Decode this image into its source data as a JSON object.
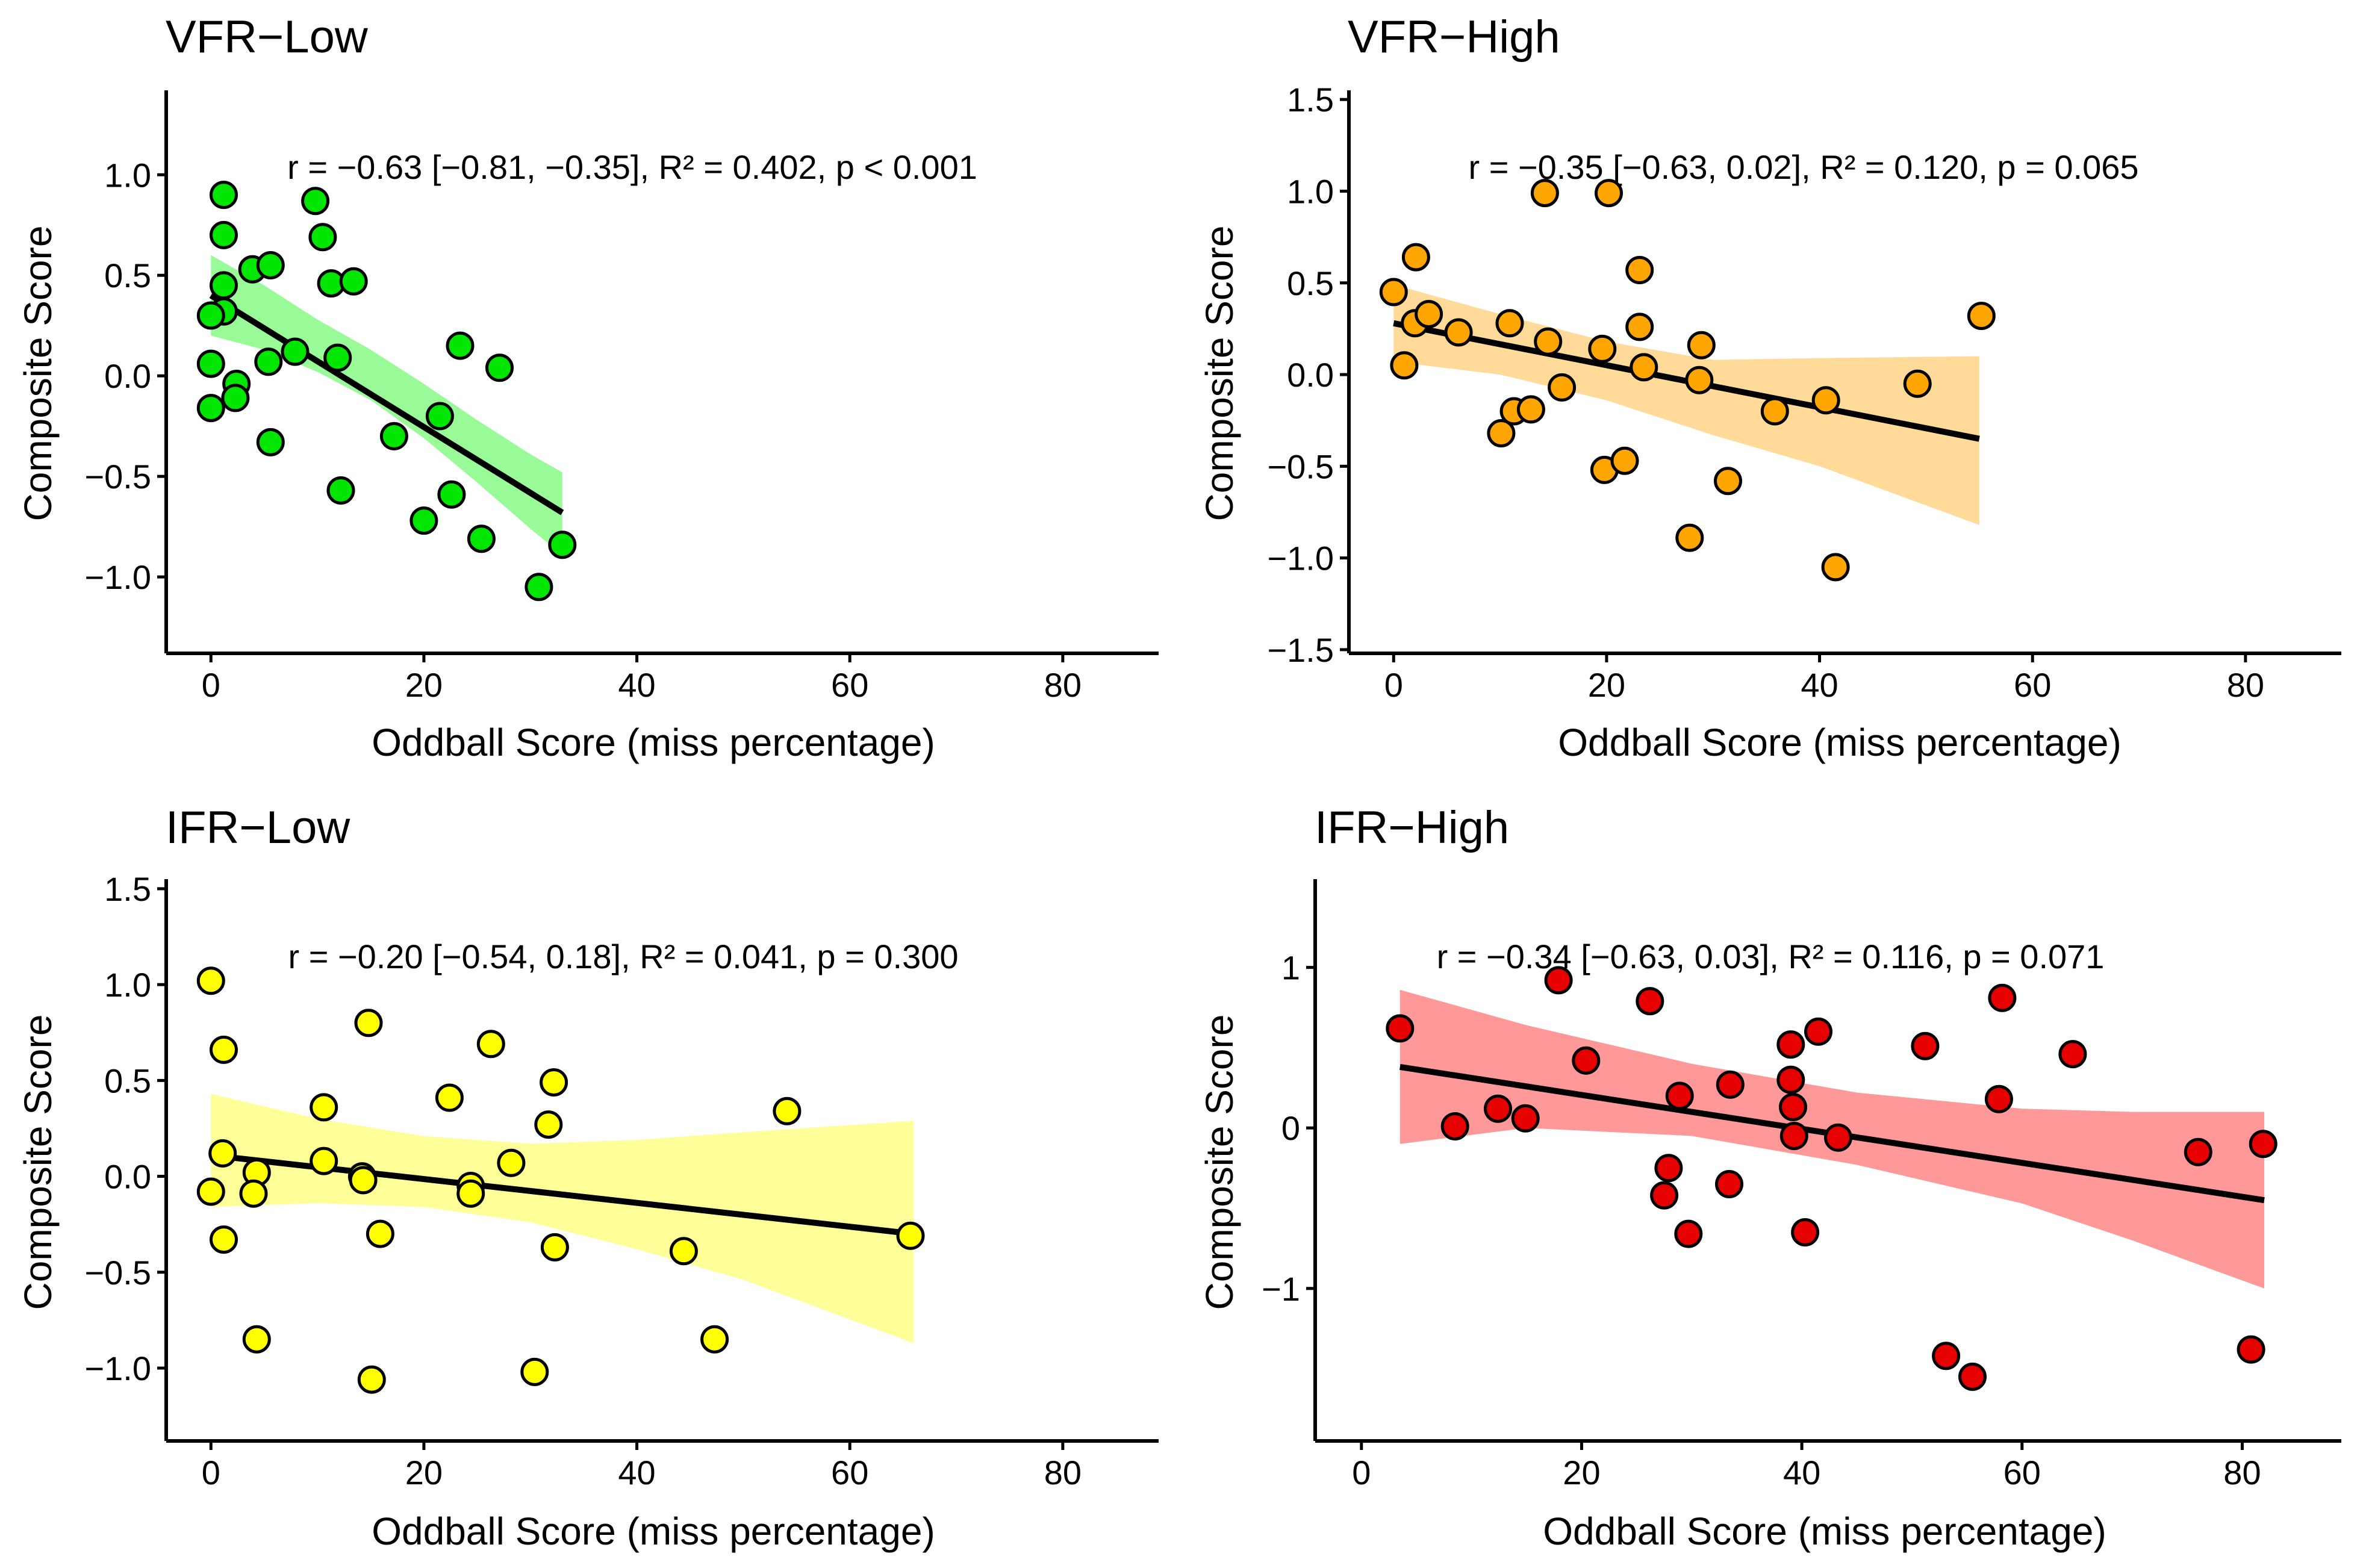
{
  "chart_data": [
    {
      "type": "scatter",
      "title": "VFR−Low",
      "xlabel": "Oddball Score (miss percentage)",
      "ylabel": "Composite Score",
      "annotation": "r = −0.63 [−0.81, −0.35], R² = 0.402, p < 0.001",
      "color": "#00E600",
      "band_color": "#98FB98",
      "xlim": [
        -4.2,
        89
      ],
      "ylim": [
        -1.38,
        1.42
      ],
      "xticks": [
        0,
        20,
        40,
        60,
        80
      ],
      "xtick_labels": [
        "0",
        "20",
        "40",
        "60",
        "80"
      ],
      "yticks": [
        -1.0,
        -0.5,
        0.0,
        0.5,
        1.0
      ],
      "ytick_labels": [
        "−1.0",
        "−0.5",
        "0.0",
        "0.5",
        "1.0"
      ],
      "points": [
        [
          1.2,
          0.9
        ],
        [
          1.2,
          0.7
        ],
        [
          1.2,
          0.45
        ],
        [
          1.2,
          0.32
        ],
        [
          0,
          0.3
        ],
        [
          0,
          0.06
        ],
        [
          0,
          -0.16
        ],
        [
          2.4,
          -0.04
        ],
        [
          2.3,
          -0.11
        ],
        [
          3.9,
          0.53
        ],
        [
          5.6,
          0.55
        ],
        [
          5.4,
          0.07
        ],
        [
          5.6,
          -0.33
        ],
        [
          7.9,
          0.12
        ],
        [
          9.8,
          0.87
        ],
        [
          10.5,
          0.69
        ],
        [
          11.3,
          0.46
        ],
        [
          13.4,
          0.47
        ],
        [
          11.9,
          0.09
        ],
        [
          12.2,
          -0.57
        ],
        [
          17.2,
          -0.3
        ],
        [
          20.0,
          -0.72
        ],
        [
          21.5,
          -0.2
        ],
        [
          22.6,
          -0.59
        ],
        [
          23.4,
          0.15
        ],
        [
          25.4,
          -0.81
        ],
        [
          27.1,
          0.04
        ],
        [
          30.8,
          -1.05
        ],
        [
          33.0,
          -0.84
        ]
      ],
      "fit": {
        "x": [
          0,
          33
        ],
        "y": [
          0.4,
          -0.68
        ]
      },
      "band": {
        "x": [
          0,
          5,
          10,
          15,
          20,
          25,
          30,
          33
        ],
        "lower": [
          0.2,
          0.13,
          0.02,
          -0.12,
          -0.31,
          -0.53,
          -0.76,
          -0.89
        ],
        "upper": [
          0.6,
          0.45,
          0.28,
          0.13,
          -0.04,
          -0.22,
          -0.39,
          -0.48
        ]
      }
    },
    {
      "type": "scatter",
      "title": "VFR−High",
      "xlabel": "Oddball Score (miss percentage)",
      "ylabel": "Composite Score",
      "annotation": "r = −0.35 [−0.63, 0.02], R² = 0.120, p = 0.065",
      "color": "#FFA500",
      "band_color": "#FFDA99",
      "xlim": [
        -4.2,
        89
      ],
      "ylim": [
        -1.52,
        1.55
      ],
      "xticks": [
        0,
        20,
        40,
        60,
        80
      ],
      "xtick_labels": [
        "0",
        "20",
        "40",
        "60",
        "80"
      ],
      "yticks": [
        -1.5,
        -1.0,
        -0.5,
        0.0,
        0.5,
        1.0,
        1.5
      ],
      "ytick_labels": [
        "−1.5",
        "−1.0",
        "−0.5",
        "0.0",
        "0.5",
        "1.0",
        "1.5"
      ],
      "points": [
        [
          0,
          0.45
        ],
        [
          1.0,
          0.05
        ],
        [
          2.0,
          0.28
        ],
        [
          2.1,
          0.64
        ],
        [
          3.3,
          0.33
        ],
        [
          6.1,
          0.23
        ],
        [
          10.1,
          -0.32
        ],
        [
          10.9,
          0.28
        ],
        [
          11.3,
          -0.2
        ],
        [
          12.9,
          -0.19
        ],
        [
          14.2,
          0.99
        ],
        [
          14.5,
          0.18
        ],
        [
          15.8,
          -0.07
        ],
        [
          19.6,
          0.14
        ],
        [
          19.8,
          -0.52
        ],
        [
          20.2,
          0.99
        ],
        [
          21.7,
          -0.47
        ],
        [
          23.1,
          0.57
        ],
        [
          23.1,
          0.26
        ],
        [
          23.5,
          0.04
        ],
        [
          27.8,
          -0.89
        ],
        [
          28.7,
          -0.03
        ],
        [
          28.9,
          0.16
        ],
        [
          31.4,
          -0.58
        ],
        [
          35.8,
          -0.2
        ],
        [
          40.6,
          -0.14
        ],
        [
          41.5,
          -1.05
        ],
        [
          49.2,
          -0.05
        ],
        [
          55.2,
          0.32
        ]
      ],
      "fit": {
        "x": [
          0,
          55
        ],
        "y": [
          0.28,
          -0.35
        ]
      },
      "band": {
        "x": [
          0,
          10,
          20,
          30,
          40,
          55
        ],
        "lower": [
          0.07,
          0.0,
          -0.14,
          -0.33,
          -0.5,
          -0.82
        ],
        "upper": [
          0.49,
          0.33,
          0.18,
          0.08,
          0.09,
          0.1
        ]
      }
    },
    {
      "type": "scatter",
      "title": "IFR−Low",
      "xlabel": "Oddball Score (miss percentage)",
      "ylabel": "Composite Score",
      "annotation": "r = −0.20 [−0.54, 0.18], R² = 0.041, p = 0.300",
      "color": "#FFFF00",
      "band_color": "#FFFF99",
      "xlim": [
        -4.2,
        89
      ],
      "ylim": [
        -1.38,
        1.55
      ],
      "xticks": [
        0,
        20,
        40,
        60,
        80
      ],
      "xtick_labels": [
        "0",
        "20",
        "40",
        "60",
        "80"
      ],
      "yticks": [
        -1.0,
        -0.5,
        0.0,
        0.5,
        1.0,
        1.5
      ],
      "ytick_labels": [
        "−1.0",
        "−0.5",
        "0.0",
        "0.5",
        "1.0",
        "1.5"
      ],
      "points": [
        [
          0,
          1.02
        ],
        [
          0,
          -0.08
        ],
        [
          1.2,
          0.66
        ],
        [
          1.1,
          0.12
        ],
        [
          1.2,
          -0.33
        ],
        [
          4.3,
          0.02
        ],
        [
          4.0,
          -0.09
        ],
        [
          4.3,
          -0.85
        ],
        [
          10.6,
          0.36
        ],
        [
          10.6,
          0.08
        ],
        [
          14.2,
          0.0
        ],
        [
          14.3,
          -0.02
        ],
        [
          14.8,
          0.8
        ],
        [
          15.1,
          -1.06
        ],
        [
          15.9,
          -0.3
        ],
        [
          22.4,
          0.41
        ],
        [
          24.4,
          -0.05
        ],
        [
          24.4,
          -0.09
        ],
        [
          26.3,
          0.69
        ],
        [
          28.2,
          0.07
        ],
        [
          30.4,
          -1.02
        ],
        [
          31.7,
          0.27
        ],
        [
          32.2,
          0.49
        ],
        [
          32.3,
          -0.37
        ],
        [
          44.4,
          -0.39
        ],
        [
          47.3,
          -0.85
        ],
        [
          54.1,
          0.34
        ],
        [
          65.7,
          -0.31
        ]
      ],
      "fit": {
        "x": [
          0,
          66
        ],
        "y": [
          0.11,
          -0.3
        ]
      },
      "band": {
        "x": [
          0,
          10,
          20,
          30,
          40,
          50,
          66
        ],
        "lower": [
          -0.16,
          -0.14,
          -0.16,
          -0.24,
          -0.38,
          -0.54,
          -0.87
        ],
        "upper": [
          0.43,
          0.3,
          0.21,
          0.17,
          0.19,
          0.23,
          0.29
        ]
      }
    },
    {
      "type": "scatter",
      "title": "IFR−High",
      "xlabel": "Oddball Score (miss percentage)",
      "ylabel": "Composite Score",
      "annotation": "r = −0.34 [−0.63, 0.03], R² = 0.116, p = 0.071",
      "color": "#E60000",
      "band_color": "#FF9999",
      "xlim": [
        -4.2,
        89
      ],
      "ylim": [
        -1.95,
        1.55
      ],
      "xticks": [
        0,
        20,
        40,
        60,
        80
      ],
      "xtick_labels": [
        "0",
        "20",
        "40",
        "60",
        "80"
      ],
      "yticks": [
        -1,
        0,
        1
      ],
      "ytick_labels": [
        "−1",
        "0",
        "1"
      ],
      "points": [
        [
          3.5,
          0.62
        ],
        [
          8.5,
          0.01
        ],
        [
          12.4,
          0.12
        ],
        [
          14.9,
          0.06
        ],
        [
          17.9,
          0.92
        ],
        [
          20.4,
          0.42
        ],
        [
          26.2,
          0.79
        ],
        [
          27.5,
          -0.42
        ],
        [
          27.9,
          -0.25
        ],
        [
          28.9,
          0.2
        ],
        [
          29.7,
          -0.66
        ],
        [
          33.5,
          0.27
        ],
        [
          33.4,
          -0.35
        ],
        [
          39.0,
          0.52
        ],
        [
          39.0,
          0.3
        ],
        [
          39.2,
          0.13
        ],
        [
          39.3,
          -0.05
        ],
        [
          40.3,
          -0.65
        ],
        [
          41.5,
          0.6
        ],
        [
          43.3,
          -0.06
        ],
        [
          51.2,
          0.51
        ],
        [
          53.1,
          -1.42
        ],
        [
          55.5,
          -1.55
        ],
        [
          57.9,
          0.18
        ],
        [
          58.2,
          0.81
        ],
        [
          64.6,
          0.46
        ],
        [
          76.0,
          -0.15
        ],
        [
          80.8,
          -1.38
        ],
        [
          81.9,
          -0.1
        ]
      ],
      "fit": {
        "x": [
          3.5,
          82
        ],
        "y": [
          0.38,
          -0.45
        ]
      },
      "band": {
        "x": [
          3.5,
          15,
          30,
          45,
          60,
          70,
          82
        ],
        "lower": [
          -0.1,
          0.0,
          -0.05,
          -0.23,
          -0.47,
          -0.7,
          -1.0
        ],
        "upper": [
          0.86,
          0.64,
          0.4,
          0.22,
          0.12,
          0.1,
          0.1
        ]
      }
    }
  ]
}
